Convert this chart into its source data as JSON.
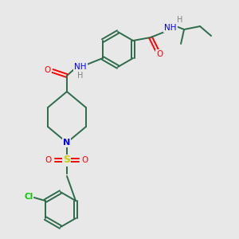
{
  "bg_color": "#e8e8e8",
  "bond_color": "#2d6b4a",
  "atom_colors": {
    "N": "#0000ff",
    "O": "#ff0000",
    "S": "#cccc00",
    "Cl": "#00cc00",
    "H": "#808080",
    "C": "#2d6b4a"
  },
  "figsize": [
    3.0,
    3.0
  ],
  "dpi": 100
}
